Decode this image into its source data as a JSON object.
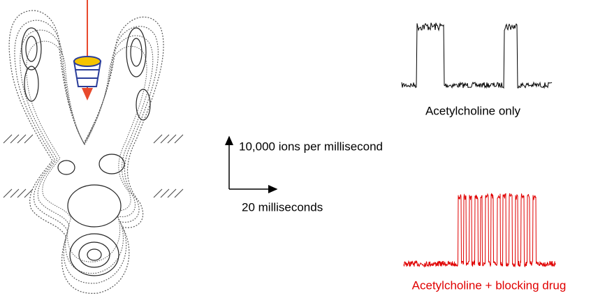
{
  "labels": {
    "top_trace": "Acetylcholine only",
    "scale_y": "10,000 ions per millisecond",
    "scale_x": "20 milliseconds",
    "bottom_trace": "Acetylcholine + blocking drug"
  }
}
